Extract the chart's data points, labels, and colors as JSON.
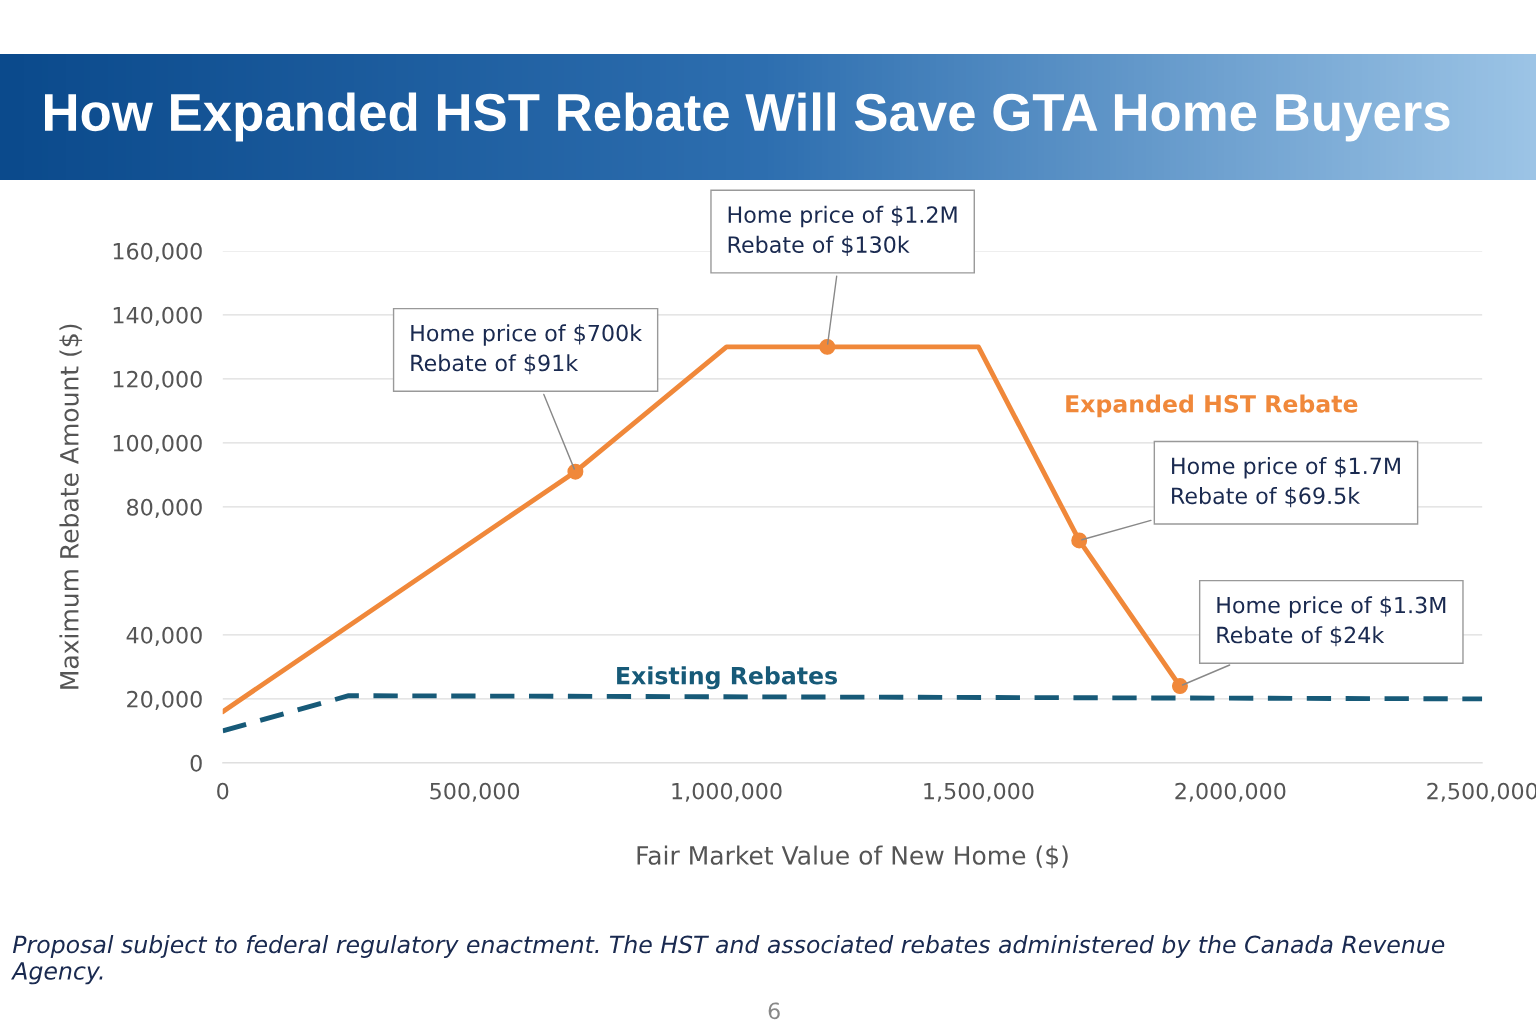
{
  "chart_data": {
    "type": "line",
    "title": "How Expanded HST Rebate Will Save GTA Home Buyers",
    "xlabel": "Fair Market Value of New Home ($)",
    "ylabel": "Maximum Rebate Amount ($)",
    "series": [
      {
        "name": "Expanded HST Rebate",
        "color": "#f0883a",
        "x": [
          0,
          700000,
          1000000,
          1200000,
          1500000,
          1700000,
          1900000
        ],
        "values": [
          16000,
          91000,
          130000,
          130000,
          130000,
          69500,
          24000
        ],
        "marker": "none",
        "line_style": "solid"
      },
      {
        "type": "scatter",
        "color": "#f0883a",
        "x": [
          700000,
          1200000,
          1700000,
          1900000
        ],
        "values": [
          91000,
          130000,
          69500,
          24000
        ],
        "marker": "circle"
      },
      {
        "name": "Existing Rebates",
        "color": "#175a78",
        "x": [
          0,
          250000,
          2500000
        ],
        "values": [
          10000,
          21000,
          20000
        ],
        "marker": "none",
        "line_style": "dashed"
      }
    ],
    "xlim": [
      0,
      2500000
    ],
    "ylim": [
      0,
      160000
    ],
    "xticks": [
      0,
      {
        "value": 500000,
        "label": "500,000"
      },
      {
        "value": 1000000,
        "label": "1,000,000"
      },
      {
        "value": 1500000,
        "label": "1,500,000"
      },
      {
        "value": 2000000,
        "label": "2,000,000"
      },
      {
        "value": 2500000,
        "label": "2,500,000"
      }
    ],
    "yticks": [
      0,
      {
        "value": 20000,
        "label": "20,000"
      },
      {
        "value": 40000,
        "label": "40,000"
      },
      {
        "value": 80000,
        "label": "80,000"
      },
      {
        "value": 100000,
        "label": "100,000"
      },
      {
        "value": 120000,
        "label": "120,000"
      },
      {
        "value": 140000,
        "label": "140,000"
      },
      {
        "value": 160000,
        "label": "160,000"
      }
    ],
    "grid": "y",
    "legend": false,
    "annotations": [
      {
        "text": "Home price of $700k\nRebate of $91k",
        "x": 700000,
        "y": 91000
      },
      {
        "text": "Home price of $1.2M\nRebate of $130k",
        "x": 1200000,
        "y": 130000
      },
      {
        "text": "Home price of $1.7M\nRebate of $69.5k",
        "x": 1700000,
        "y": 69500
      },
      {
        "text": "Home price of $1.3M\nRebate of $24k",
        "x": 1900000,
        "y": 24000
      },
      "Proposal subject to federal regulatory enactment. The HST and associated rebates administered by the Canada Revenue Agency.",
      "6"
    ]
  }
}
